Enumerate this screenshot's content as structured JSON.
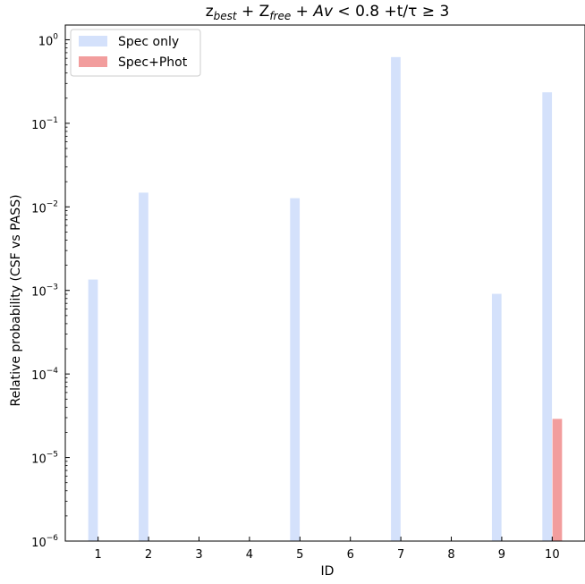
{
  "chart_data": {
    "type": "bar",
    "title": {
      "parts": [
        {
          "text": "z",
          "style": "normal",
          "shift": "base"
        },
        {
          "text": "best",
          "style": "italic",
          "shift": "sub"
        },
        {
          "text": " + Z",
          "style": "normal",
          "shift": "base"
        },
        {
          "text": "free",
          "style": "italic",
          "shift": "sub"
        },
        {
          "text": " + ",
          "style": "normal",
          "shift": "base"
        },
        {
          "text": "Av",
          "style": "italic",
          "shift": "base"
        },
        {
          "text": " < 0.8 +t/τ ≥ 3",
          "style": "normal",
          "shift": "base"
        }
      ]
    },
    "xlabel": "ID",
    "ylabel": "Relative probability (CSF vs PASS)",
    "yscale": "log",
    "ylim": [
      1e-06,
      1.5
    ],
    "xlim": [
      0.35,
      10.65
    ],
    "x_ticks": [
      1,
      2,
      3,
      4,
      5,
      6,
      7,
      8,
      9,
      10
    ],
    "y_ticks": [
      {
        "value": 1e-06,
        "base": "10",
        "exp": "−6"
      },
      {
        "value": 1e-05,
        "base": "10",
        "exp": "−5"
      },
      {
        "value": 0.0001,
        "base": "10",
        "exp": "−4"
      },
      {
        "value": 0.001,
        "base": "10",
        "exp": "−3"
      },
      {
        "value": 0.01,
        "base": "10",
        "exp": "−2"
      },
      {
        "value": 0.1,
        "base": "10",
        "exp": "−1"
      },
      {
        "value": 1,
        "base": "10",
        "exp": "0"
      }
    ],
    "grid": false,
    "legend_position": "top-left",
    "series": [
      {
        "name": "Spec only",
        "color": "#d4e1fb",
        "offset": -0.1,
        "values": [
          {
            "id": 1,
            "value": 0.00135
          },
          {
            "id": 2,
            "value": 0.0148
          },
          {
            "id": 3,
            "value": null
          },
          {
            "id": 4,
            "value": null
          },
          {
            "id": 5,
            "value": 0.0127
          },
          {
            "id": 6,
            "value": null
          },
          {
            "id": 7,
            "value": 0.62
          },
          {
            "id": 8,
            "value": null
          },
          {
            "id": 9,
            "value": 0.00091
          },
          {
            "id": 10,
            "value": 0.235
          }
        ]
      },
      {
        "name": "Spec+Phot",
        "color": "#f29d9d",
        "offset": 0.1,
        "values": [
          {
            "id": 1,
            "value": null
          },
          {
            "id": 2,
            "value": null
          },
          {
            "id": 3,
            "value": null
          },
          {
            "id": 4,
            "value": null
          },
          {
            "id": 5,
            "value": null
          },
          {
            "id": 6,
            "value": null
          },
          {
            "id": 7,
            "value": null
          },
          {
            "id": 8,
            "value": null
          },
          {
            "id": 9,
            "value": null
          },
          {
            "id": 10,
            "value": 2.9e-05
          }
        ]
      }
    ]
  }
}
